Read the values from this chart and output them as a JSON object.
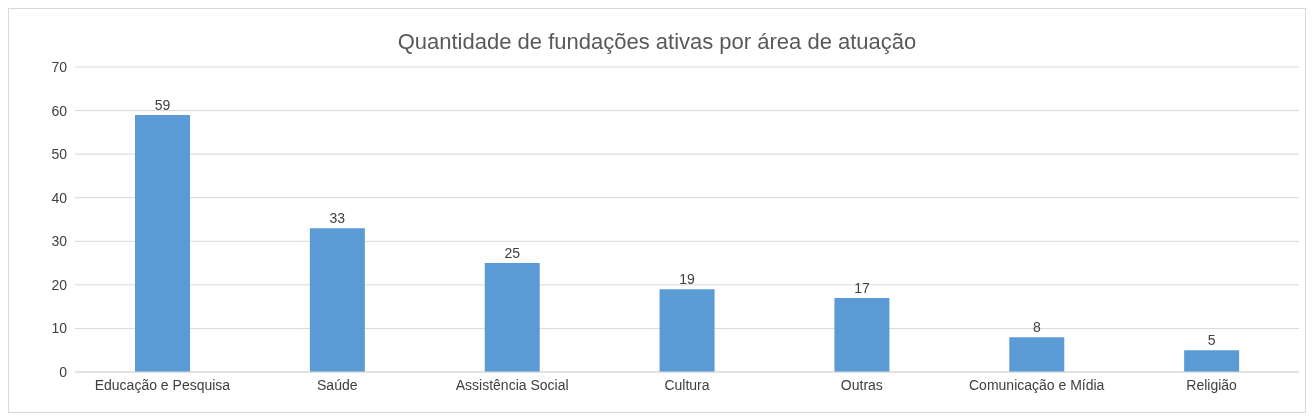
{
  "chart_data": {
    "type": "bar",
    "title": "Quantidade de fundações ativas por área de atuação",
    "categories": [
      "Educação e Pesquisa",
      "Saúde",
      "Assistência Social",
      "Cultura",
      "Outras",
      "Comunicação e Mídia",
      "Religião"
    ],
    "values": [
      59,
      33,
      25,
      19,
      17,
      8,
      5
    ],
    "color": "#5b9bd5",
    "ylim": [
      0,
      70
    ],
    "yticks": [
      0,
      10,
      20,
      30,
      40,
      50,
      60,
      70
    ],
    "grid": "y",
    "data_labels": true
  }
}
